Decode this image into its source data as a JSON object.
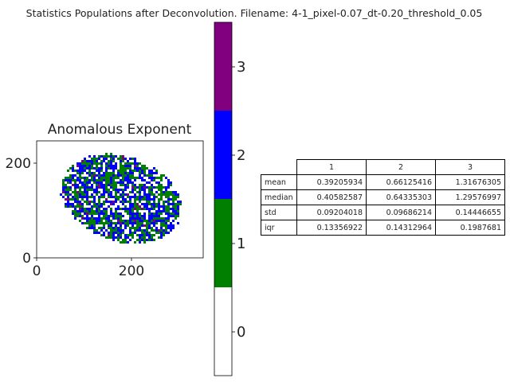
{
  "figure": {
    "suptitle": "Statistics Populations after Deconvolution. Filename: 4-1_pixel-0.07_dt-0.20_threshold_0.05"
  },
  "chart_data": [
    {
      "type": "heatmap",
      "title": "Anomalous Exponent",
      "xticks": [
        "0",
        "200"
      ],
      "yticks": [
        "0",
        "200"
      ],
      "xlim": [
        0,
        350
      ],
      "ylim": [
        0,
        250
      ],
      "categories": [
        "0",
        "1",
        "2",
        "3"
      ],
      "colors": [
        "#ffffff",
        "#007f00",
        "#0000ff",
        "#800080"
      ],
      "colorbar_ticks": [
        "0",
        "1",
        "2",
        "3"
      ]
    },
    {
      "type": "table",
      "columns": [
        "1",
        "2",
        "3"
      ],
      "rows": [
        {
          "label": "mean",
          "values": [
            "0.39205934",
            "0.66125416",
            "1.31676305"
          ]
        },
        {
          "label": "median",
          "values": [
            "0.40582587",
            "0.64335303",
            "1.29576997"
          ]
        },
        {
          "label": "std",
          "values": [
            "0.09204018",
            "0.09686214",
            "0.14446655"
          ]
        },
        {
          "label": "iqr",
          "values": [
            "0.13356922",
            "0.14312964",
            "0.1987681"
          ]
        }
      ]
    }
  ]
}
